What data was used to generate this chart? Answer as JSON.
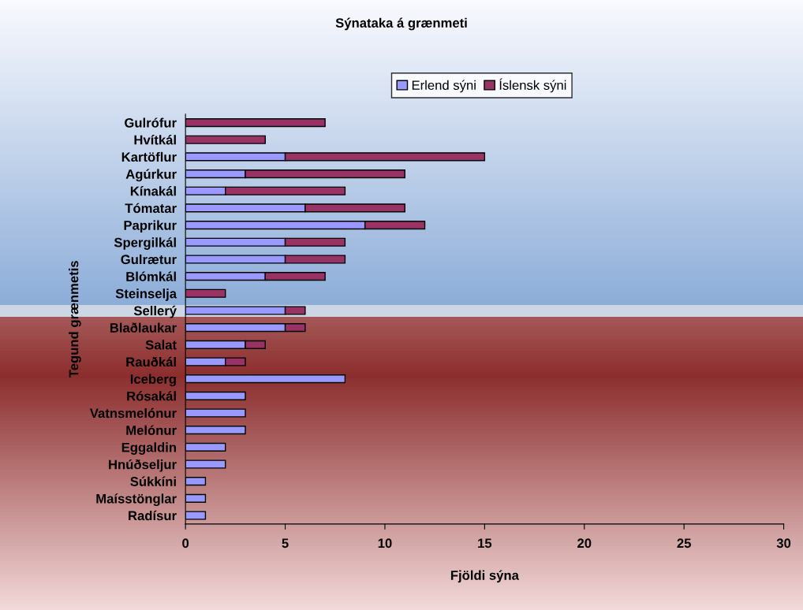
{
  "chart_data": {
    "type": "bar",
    "orientation": "horizontal",
    "stacked": true,
    "title": "Sýnataka á grænmeti",
    "xlabel": "Fjöldi sýna",
    "ylabel": "Tegund grænmetis",
    "categories": [
      "Gulrófur",
      "Hvítkál",
      "Kartöflur",
      "Agúrkur",
      "Kínakál",
      "Tómatar",
      "Paprikur",
      "Spergilkál",
      "Gulrætur",
      "Blómkál",
      "Steinselja",
      "Sellerý",
      "Blaðlaukar",
      "Salat",
      "Rauðkál",
      "Iceberg",
      "Rósakál",
      "Vatnsmelónur",
      "Melónur",
      "Eggaldin",
      "Hnúðseljur",
      "Súkkíni",
      "Maísstönglar",
      "Radísur"
    ],
    "series": [
      {
        "name": "Erlend sýni",
        "color": "#9999ff",
        "values": [
          0,
          0,
          5,
          3,
          2,
          6,
          9,
          5,
          5,
          4,
          0,
          5,
          5,
          3,
          2,
          8,
          3,
          3,
          3,
          2,
          2,
          1,
          1,
          1
        ]
      },
      {
        "name": "Íslensk sýni",
        "color": "#993366",
        "values": [
          7,
          4,
          10,
          8,
          6,
          5,
          3,
          3,
          3,
          3,
          2,
          1,
          1,
          1,
          1,
          0,
          0,
          0,
          0,
          0,
          0,
          0,
          0,
          0
        ]
      }
    ],
    "xlim": [
      0,
      30
    ],
    "xticks": [
      0,
      5,
      10,
      15,
      20,
      25,
      30
    ],
    "grid": false,
    "legend": "top"
  }
}
